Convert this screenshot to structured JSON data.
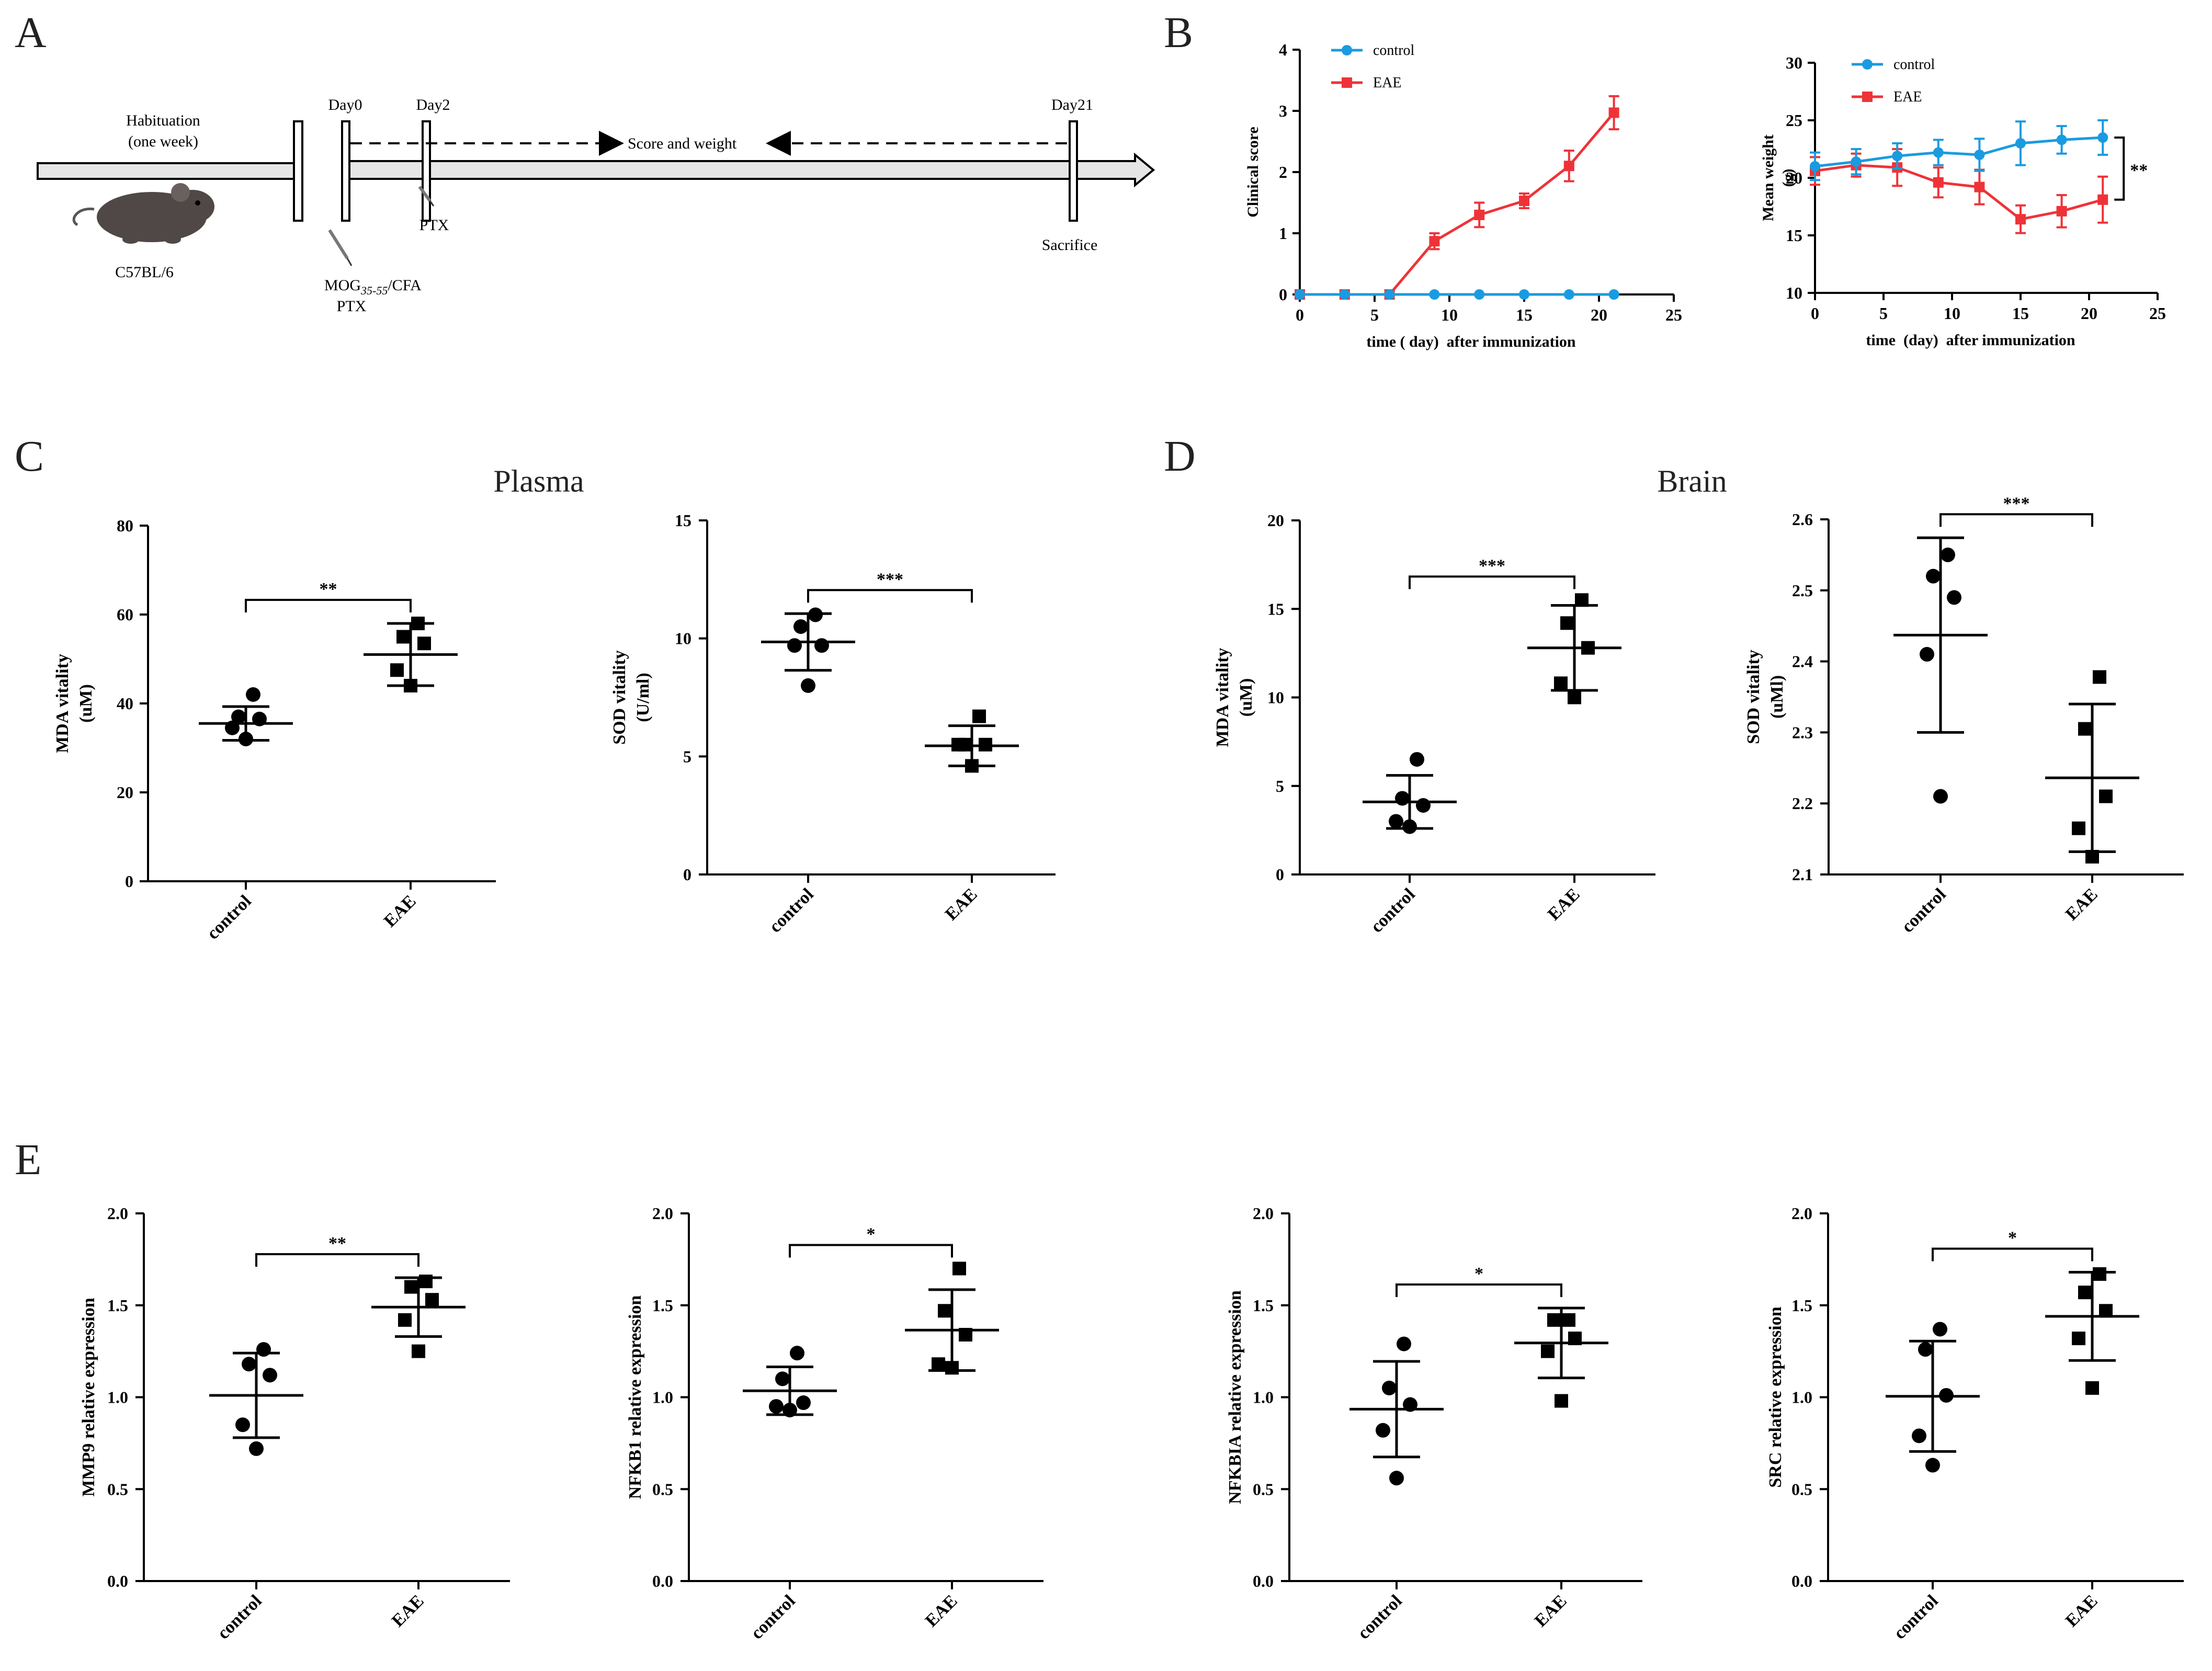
{
  "panel_labels": {
    "a": "A",
    "b": "B",
    "c": "C",
    "d": "D",
    "e": "E"
  },
  "timeline": {
    "habituation_line1": "Habituation",
    "habituation_line2": "(one week)",
    "strain": "C57BL/6",
    "day0": "Day0",
    "day2": "Day2",
    "day21": "Day21",
    "score_weight": "Score and weight",
    "mog_prefix": "MOG",
    "mog_sub": "35-55",
    "mog_suffix": "/CFA",
    "ptx_day0": "PTX",
    "ptx_day2": "PTX",
    "sacrifice": "Sacrifice"
  },
  "section_titles": {
    "plasma": "Plasma",
    "brain": "Brain"
  },
  "colors": {
    "control": "#1a9be0",
    "eae": "#ee3338",
    "ink": "#000000"
  },
  "chart_data": [
    {
      "id": "clinical",
      "type": "line",
      "xlabel": "time ( day)  after immunization",
      "ylabel": "Clinical score",
      "xlim": [
        0,
        25
      ],
      "ylim": [
        0,
        4
      ],
      "xticks": [
        0,
        5,
        10,
        15,
        20,
        25
      ],
      "yticks": [
        0,
        1,
        2,
        3,
        4
      ],
      "legend": [
        "control",
        "EAE"
      ],
      "legend_position": "top-left",
      "series": [
        {
          "name": "control",
          "x": [
            0,
            3,
            6,
            9,
            12,
            15,
            18,
            21
          ],
          "values": [
            0,
            0,
            0,
            0,
            0,
            0,
            0,
            0
          ],
          "err": [
            0,
            0,
            0,
            0,
            0,
            0,
            0,
            0
          ]
        },
        {
          "name": "EAE",
          "x": [
            0,
            3,
            6,
            9,
            12,
            15,
            18,
            21
          ],
          "values": [
            0,
            0,
            0,
            0.87,
            1.3,
            1.53,
            2.1,
            2.97
          ],
          "err": [
            0,
            0,
            0,
            0.13,
            0.2,
            0.12,
            0.25,
            0.27
          ]
        }
      ]
    },
    {
      "id": "weight",
      "type": "line",
      "xlabel": "time  (day)  after immunization",
      "ylabel": "Mean weight",
      "yunit": "(g)",
      "xlim": [
        0,
        25
      ],
      "ylim": [
        10,
        30
      ],
      "xticks": [
        0,
        5,
        10,
        15,
        20,
        25
      ],
      "yticks": [
        10,
        15,
        20,
        25,
        30
      ],
      "legend": [
        "control",
        "EAE"
      ],
      "legend_position": "top-left",
      "significance": "**",
      "series": [
        {
          "name": "control",
          "x": [
            0,
            3,
            6,
            9,
            12,
            15,
            18,
            21
          ],
          "values": [
            21.0,
            21.4,
            21.9,
            22.2,
            22.0,
            23.0,
            23.3,
            23.5
          ],
          "err": [
            1.2,
            1.1,
            1.1,
            1.1,
            1.4,
            1.9,
            1.2,
            1.5
          ]
        },
        {
          "name": "EAE",
          "x": [
            0,
            3,
            6,
            9,
            12,
            15,
            18,
            21
          ],
          "values": [
            20.6,
            21.1,
            20.9,
            19.6,
            19.2,
            16.4,
            17.1,
            18.1
          ],
          "err": [
            1.2,
            1.0,
            1.6,
            1.3,
            1.5,
            1.2,
            1.4,
            2.0
          ]
        }
      ]
    },
    {
      "id": "plasma_mda",
      "type": "scatter",
      "title": "",
      "ylabel": "MDA vitality",
      "yunit": "(uM)",
      "categories": [
        "control",
        "EAE"
      ],
      "ylim": [
        0,
        80
      ],
      "yticks": [
        0,
        20,
        40,
        60,
        80
      ],
      "ytick_labels": [
        "0",
        "20",
        "40",
        "60",
        "80"
      ],
      "significance": "**",
      "series": [
        {
          "name": "control",
          "points": [
            32,
            34.5,
            36.5,
            37,
            42
          ],
          "mean": 35.5,
          "sd": 3.8
        },
        {
          "name": "EAE",
          "points": [
            44,
            47.5,
            53.5,
            55,
            58
          ],
          "mean": 51,
          "sd": 7
        }
      ]
    },
    {
      "id": "plasma_sod",
      "type": "scatter",
      "ylabel": "SOD vitality",
      "yunit": "(U/ml)",
      "categories": [
        "control",
        "EAE"
      ],
      "ylim": [
        0,
        15
      ],
      "yticks": [
        0,
        5,
        10,
        15
      ],
      "ytick_labels": [
        "0",
        "5",
        "10",
        "15"
      ],
      "significance": "***",
      "series": [
        {
          "name": "control",
          "points": [
            8,
            9.7,
            9.7,
            10.5,
            11
          ],
          "mean": 9.85,
          "sd": 1.2
        },
        {
          "name": "EAE",
          "points": [
            4.6,
            5.5,
            5.5,
            5.5,
            6.7
          ],
          "mean": 5.45,
          "sd": 0.85
        }
      ]
    },
    {
      "id": "brain_mda",
      "type": "scatter",
      "ylabel": "MDA vitality",
      "yunit": "(uM)",
      "categories": [
        "control",
        "EAE"
      ],
      "ylim": [
        0,
        20
      ],
      "yticks": [
        0,
        5,
        10,
        15,
        20
      ],
      "ytick_labels": [
        "0",
        "5",
        "10",
        "15",
        "20"
      ],
      "significance": "***",
      "series": [
        {
          "name": "control",
          "points": [
            2.7,
            3.0,
            3.9,
            4.3,
            6.5
          ],
          "mean": 4.1,
          "sd": 1.5
        },
        {
          "name": "EAE",
          "points": [
            10.0,
            10.8,
            12.8,
            14.2,
            15.5
          ],
          "mean": 12.8,
          "sd": 2.4
        }
      ]
    },
    {
      "id": "brain_sod",
      "type": "scatter",
      "ylabel": "SOD vitality",
      "yunit": "(uMl)",
      "categories": [
        "control",
        "EAE"
      ],
      "ylim": [
        2.1,
        2.6
      ],
      "yticks": [
        2.1,
        2.2,
        2.3,
        2.4,
        2.5,
        2.6
      ],
      "ytick_labels": [
        "2.1",
        "2.2",
        "2.3",
        "2.4",
        "2.5",
        "2.6"
      ],
      "significance": "***",
      "series": [
        {
          "name": "control",
          "points": [
            2.21,
            2.41,
            2.49,
            2.52,
            2.55
          ],
          "mean": 2.437,
          "sd": 0.137
        },
        {
          "name": "EAE",
          "points": [
            2.125,
            2.165,
            2.21,
            2.305,
            2.378
          ],
          "mean": 2.236,
          "sd": 0.104
        }
      ]
    },
    {
      "id": "mmp9",
      "type": "scatter",
      "ylabel": "MMP9 relative expression",
      "categories": [
        "control",
        "EAE"
      ],
      "ylim": [
        0,
        2
      ],
      "yticks": [
        0,
        0.5,
        1,
        1.5,
        2
      ],
      "ytick_labels": [
        "0.0",
        "0.5",
        "1.0",
        "1.5",
        "2.0"
      ],
      "significance": "**",
      "series": [
        {
          "name": "control",
          "points": [
            0.72,
            0.85,
            1.12,
            1.18,
            1.26
          ],
          "mean": 1.01,
          "sd": 0.23
        },
        {
          "name": "EAE",
          "points": [
            1.25,
            1.42,
            1.53,
            1.6,
            1.63
          ],
          "mean": 1.49,
          "sd": 0.16
        }
      ]
    },
    {
      "id": "nfkb1",
      "type": "scatter",
      "ylabel": "NFKB1 relative expression",
      "categories": [
        "control",
        "EAE"
      ],
      "ylim": [
        0,
        2
      ],
      "yticks": [
        0,
        0.5,
        1,
        1.5,
        2
      ],
      "ytick_labels": [
        "0.0",
        "0.5",
        "1.0",
        "1.5",
        "2.0"
      ],
      "significance": "*",
      "series": [
        {
          "name": "control",
          "points": [
            0.93,
            0.95,
            0.97,
            1.1,
            1.24
          ],
          "mean": 1.035,
          "sd": 0.13
        },
        {
          "name": "EAE",
          "points": [
            1.16,
            1.18,
            1.34,
            1.47,
            1.7
          ],
          "mean": 1.365,
          "sd": 0.22
        }
      ]
    },
    {
      "id": "nfkbia",
      "type": "scatter",
      "ylabel": "NFKBIA relative expression",
      "categories": [
        "control",
        "EAE"
      ],
      "ylim": [
        0,
        2
      ],
      "yticks": [
        0,
        0.5,
        1,
        1.5,
        2
      ],
      "ytick_labels": [
        "0.0",
        "0.5",
        "1.0",
        "1.5",
        "2.0"
      ],
      "significance": "*",
      "series": [
        {
          "name": "control",
          "points": [
            0.56,
            0.82,
            0.96,
            1.05,
            1.29
          ],
          "mean": 0.935,
          "sd": 0.26
        },
        {
          "name": "EAE",
          "points": [
            0.98,
            1.25,
            1.32,
            1.42,
            1.42
          ],
          "mean": 1.295,
          "sd": 0.19
        }
      ]
    },
    {
      "id": "src",
      "type": "scatter",
      "ylabel": "SRC relative expression",
      "categories": [
        "control",
        "EAE"
      ],
      "ylim": [
        0,
        2
      ],
      "yticks": [
        0,
        0.5,
        1,
        1.5,
        2
      ],
      "ytick_labels": [
        "0.0",
        "0.5",
        "1.0",
        "1.5",
        "2.0"
      ],
      "significance": "*",
      "series": [
        {
          "name": "control",
          "points": [
            0.63,
            0.79,
            1.01,
            1.26,
            1.37
          ],
          "mean": 1.005,
          "sd": 0.3
        },
        {
          "name": "EAE",
          "points": [
            1.05,
            1.32,
            1.47,
            1.57,
            1.67
          ],
          "mean": 1.44,
          "sd": 0.24
        }
      ]
    }
  ]
}
